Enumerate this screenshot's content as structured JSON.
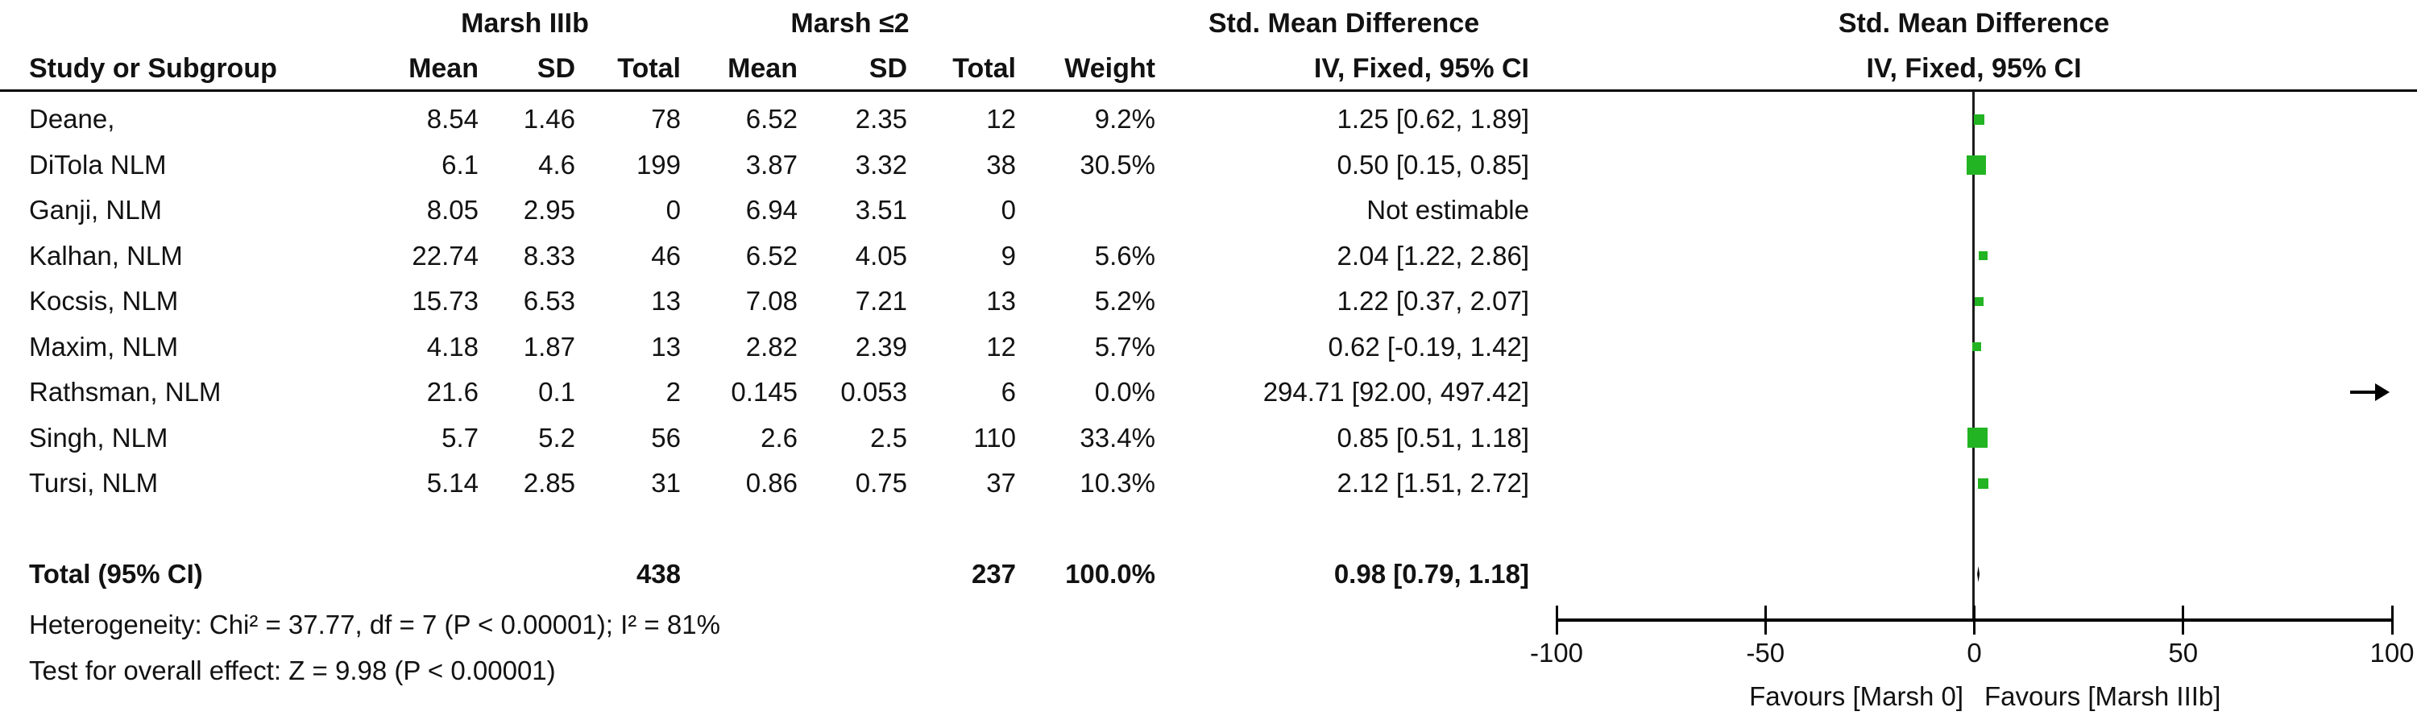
{
  "table": {
    "group1_header": "Marsh IIIb",
    "group2_header": "Marsh ≤2",
    "smd_header": "Std. Mean Difference",
    "plot_smd_header": "Std. Mean Difference",
    "columns": [
      "Study or Subgroup",
      "Mean",
      "SD",
      "Total",
      "Mean",
      "SD",
      "Total",
      "Weight",
      "IV, Fixed, 95% CI"
    ],
    "plot_method_header": "IV, Fixed, 95% CI",
    "studies": [
      {
        "name": "Deane,",
        "mean1": "8.54",
        "sd1": "1.46",
        "total1": "78",
        "mean2": "6.52",
        "sd2": "2.35",
        "total2": "12",
        "weight": "9.2%",
        "ci_text": "1.25 [0.62, 1.89]"
      },
      {
        "name": "DiTola NLM",
        "mean1": "6.1",
        "sd1": "4.6",
        "total1": "199",
        "mean2": "3.87",
        "sd2": "3.32",
        "total2": "38",
        "weight": "30.5%",
        "ci_text": "0.50 [0.15, 0.85]"
      },
      {
        "name": "Ganji, NLM",
        "mean1": "8.05",
        "sd1": "2.95",
        "total1": "0",
        "mean2": "6.94",
        "sd2": "3.51",
        "total2": "0",
        "weight": "",
        "ci_text": "Not estimable"
      },
      {
        "name": "Kalhan, NLM",
        "mean1": "22.74",
        "sd1": "8.33",
        "total1": "46",
        "mean2": "6.52",
        "sd2": "4.05",
        "total2": "9",
        "weight": "5.6%",
        "ci_text": "2.04 [1.22, 2.86]"
      },
      {
        "name": "Kocsis, NLM",
        "mean1": "15.73",
        "sd1": "6.53",
        "total1": "13",
        "mean2": "7.08",
        "sd2": "7.21",
        "total2": "13",
        "weight": "5.2%",
        "ci_text": "1.22 [0.37, 2.07]"
      },
      {
        "name": "Maxim, NLM",
        "mean1": "4.18",
        "sd1": "1.87",
        "total1": "13",
        "mean2": "2.82",
        "sd2": "2.39",
        "total2": "12",
        "weight": "5.7%",
        "ci_text": "0.62 [-0.19, 1.42]"
      },
      {
        "name": "Rathsman, NLM",
        "mean1": "21.6",
        "sd1": "0.1",
        "total1": "2",
        "mean2": "0.145",
        "sd2": "0.053",
        "total2": "6",
        "weight": "0.0%",
        "ci_text": "294.71 [92.00, 497.42]"
      },
      {
        "name": "Singh, NLM",
        "mean1": "5.7",
        "sd1": "5.2",
        "total1": "56",
        "mean2": "2.6",
        "sd2": "2.5",
        "total2": "110",
        "weight": "33.4%",
        "ci_text": "0.85 [0.51, 1.18]"
      },
      {
        "name": "Tursi, NLM",
        "mean1": "5.14",
        "sd1": "2.85",
        "total1": "31",
        "mean2": "0.86",
        "sd2": "0.75",
        "total2": "37",
        "weight": "10.3%",
        "ci_text": "2.12 [1.51, 2.72]"
      }
    ],
    "total": {
      "label": "Total (95% CI)",
      "total1": "438",
      "total2": "237",
      "weight": "100.0%",
      "ci_text": "0.98 [0.79, 1.18]"
    },
    "heterogeneity": "Heterogeneity: Chi² = 37.77, df = 7 (P < 0.00001); I² = 81%",
    "overall_effect": "Test for overall effect: Z = 9.98 (P < 0.00001)"
  },
  "chart_data": {
    "type": "forest",
    "title": "Std. Mean Difference, IV, Fixed, 95% CI",
    "x_axis": {
      "min": -100,
      "max": 100,
      "ticks": [
        -100,
        -50,
        0,
        50,
        100
      ]
    },
    "favours_left": "Favours [Marsh 0]",
    "favours_right": "Favours [Marsh IIIb]",
    "marker_color": "#22b422",
    "line_color": "#000000",
    "studies": [
      {
        "name": "Deane,",
        "effect": 1.25,
        "ci_low": 0.62,
        "ci_high": 1.89,
        "weight_pct": 9.2
      },
      {
        "name": "DiTola NLM",
        "effect": 0.5,
        "ci_low": 0.15,
        "ci_high": 0.85,
        "weight_pct": 30.5
      },
      {
        "name": "Ganji, NLM",
        "effect": null,
        "ci_low": null,
        "ci_high": null,
        "weight_pct": 0
      },
      {
        "name": "Kalhan, NLM",
        "effect": 2.04,
        "ci_low": 1.22,
        "ci_high": 2.86,
        "weight_pct": 5.6
      },
      {
        "name": "Kocsis, NLM",
        "effect": 1.22,
        "ci_low": 0.37,
        "ci_high": 2.07,
        "weight_pct": 5.2
      },
      {
        "name": "Maxim, NLM",
        "effect": 0.62,
        "ci_low": -0.19,
        "ci_high": 1.42,
        "weight_pct": 5.7
      },
      {
        "name": "Rathsman, NLM",
        "effect": 294.71,
        "ci_low": 92.0,
        "ci_high": 497.42,
        "weight_pct": 0.0
      },
      {
        "name": "Singh, NLM",
        "effect": 0.85,
        "ci_low": 0.51,
        "ci_high": 1.18,
        "weight_pct": 33.4
      },
      {
        "name": "Tursi, NLM",
        "effect": 2.12,
        "ci_low": 1.51,
        "ci_high": 2.72,
        "weight_pct": 10.3
      }
    ],
    "total": {
      "effect": 0.98,
      "ci_low": 0.79,
      "ci_high": 1.18
    }
  }
}
